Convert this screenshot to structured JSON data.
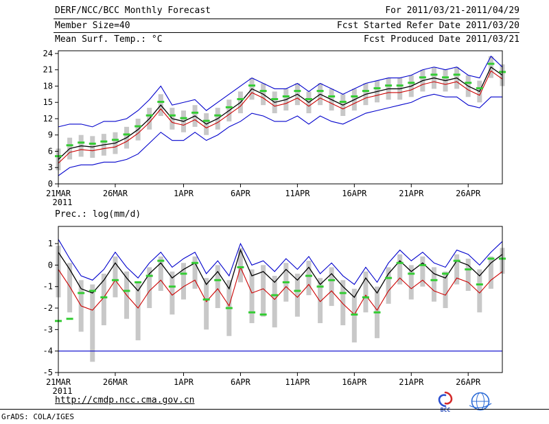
{
  "header": {
    "title": "DERF/NCC/BCC Monthly Forecast",
    "member_size": "Member Size=40",
    "panel1_label": "Mean Surf. Temp.: °C",
    "for_range": "For 2011/03/21-2011/04/29",
    "fcst_started": "Fcst Started Refer Date 2011/03/20",
    "fcst_produced": "Fcst Produced Date 2011/03/21"
  },
  "panels": {
    "prec_label": "Prec.: log(mm/d)"
  },
  "footer": {
    "url": "http://cmdp.ncc.cma.gov.cn",
    "grads_credit": "GrADS: COLA/IGES",
    "bcc_caption": "BCC"
  },
  "colors": {
    "ensemble_max_min": "#0000cc",
    "control_forecast": "#cc0000",
    "ensemble_mean": "#000000",
    "observation_dash": "#33cc33",
    "ensemble_spread_bar": "#c8c8c8"
  },
  "chart_data": [
    {
      "type": "line",
      "panel": "top",
      "title": "Mean Surf. Temp.: °C",
      "ylim": [
        0,
        24.5
      ],
      "yticks": [
        24,
        21,
        18,
        15,
        12,
        9,
        6,
        3,
        0
      ],
      "xtick_labels": [
        "21MAR",
        "26MAR",
        "1APR",
        "6APR",
        "11APR",
        "16APR",
        "21APR",
        "26APR"
      ],
      "xtick_positions": [
        0,
        5,
        11,
        16,
        21,
        26,
        31,
        36
      ],
      "year_label": "2011",
      "n_points": 40,
      "grid": false,
      "legend": false,
      "bars": {
        "name": "ensemble-spread",
        "color": "#c8c8c8",
        "top": [
          6.5,
          8.5,
          9.0,
          8.8,
          9.2,
          9.5,
          10.5,
          12.0,
          14.0,
          16.5,
          14.0,
          13.5,
          14.5,
          13.0,
          14.0,
          15.5,
          17.0,
          19.5,
          18.5,
          17.0,
          17.5,
          18.5,
          17.0,
          18.5,
          17.5,
          16.5,
          17.5,
          18.5,
          19.0,
          19.5,
          19.5,
          20.0,
          21.0,
          21.5,
          21.0,
          21.5,
          20.0,
          19.0,
          23.5,
          22.0
        ],
        "bottom": [
          2.5,
          4.5,
          5.0,
          4.8,
          5.2,
          5.5,
          6.5,
          8.0,
          10.0,
          12.5,
          10.0,
          9.5,
          10.5,
          9.0,
          10.0,
          11.5,
          13.0,
          15.5,
          14.5,
          13.0,
          13.5,
          14.5,
          13.0,
          14.5,
          13.5,
          12.5,
          13.5,
          14.5,
          15.0,
          15.5,
          15.5,
          16.0,
          17.0,
          17.5,
          17.0,
          17.5,
          16.0,
          15.0,
          19.5,
          18.0
        ]
      },
      "series": [
        {
          "name": "ensemble-max",
          "color": "#0000cc",
          "width": 1.1,
          "values": [
            10.5,
            11.0,
            11.0,
            10.5,
            11.5,
            11.5,
            12.0,
            13.5,
            15.5,
            18.0,
            14.5,
            15.0,
            15.5,
            13.5,
            15.0,
            16.5,
            18.0,
            19.5,
            18.5,
            17.5,
            17.5,
            18.5,
            17.0,
            18.5,
            17.5,
            16.5,
            17.5,
            18.5,
            19.0,
            19.5,
            19.5,
            20.0,
            21.0,
            21.5,
            21.0,
            21.5,
            20.0,
            19.5,
            23.5,
            21.5
          ]
        },
        {
          "name": "ensemble-min",
          "color": "#0000cc",
          "width": 1.1,
          "values": [
            1.5,
            3.0,
            3.5,
            3.5,
            4.0,
            4.0,
            4.5,
            5.5,
            7.5,
            9.5,
            8.0,
            8.0,
            9.5,
            8.0,
            9.0,
            10.5,
            11.5,
            13.0,
            12.5,
            11.5,
            11.5,
            12.5,
            11.0,
            12.5,
            11.5,
            11.0,
            12.0,
            13.0,
            13.5,
            14.0,
            14.5,
            15.0,
            16.0,
            16.5,
            16.0,
            16.0,
            14.5,
            14.0,
            16.0,
            16.0
          ]
        },
        {
          "name": "control-forecast",
          "color": "#cc0000",
          "width": 1.1,
          "values": [
            3.8,
            5.8,
            6.3,
            6.1,
            6.5,
            6.8,
            7.8,
            9.3,
            11.3,
            13.8,
            11.3,
            10.8,
            11.8,
            10.3,
            11.3,
            12.8,
            14.3,
            16.8,
            15.8,
            14.3,
            14.8,
            15.8,
            14.3,
            15.8,
            14.8,
            13.8,
            14.8,
            15.8,
            16.3,
            16.8,
            16.8,
            17.3,
            18.3,
            18.8,
            18.3,
            18.8,
            17.3,
            16.3,
            20.8,
            19.3
          ]
        },
        {
          "name": "ensemble-mean",
          "color": "#000000",
          "width": 1.3,
          "values": [
            4.5,
            6.5,
            7.0,
            6.8,
            7.2,
            7.5,
            8.5,
            10.0,
            12.0,
            14.5,
            12.0,
            11.5,
            12.5,
            11.0,
            12.0,
            13.5,
            15.0,
            17.5,
            16.5,
            15.0,
            15.5,
            16.5,
            15.0,
            16.5,
            15.5,
            14.5,
            15.5,
            16.5,
            17.0,
            17.5,
            17.5,
            18.0,
            19.0,
            19.5,
            19.0,
            19.5,
            18.0,
            17.0,
            21.5,
            20.0
          ]
        }
      ],
      "markers": {
        "name": "observation-dash",
        "color": "#33cc33",
        "values": [
          5.1,
          7.1,
          7.6,
          7.4,
          7.8,
          8.1,
          9.1,
          10.6,
          12.6,
          15.1,
          12.6,
          12.1,
          13.1,
          11.6,
          12.6,
          14.1,
          15.6,
          18.1,
          17.1,
          15.6,
          16.1,
          17.1,
          15.6,
          17.1,
          16.1,
          15.1,
          16.1,
          17.1,
          17.6,
          18.1,
          18.1,
          18.6,
          19.6,
          20.1,
          19.6,
          20.1,
          18.6,
          17.6,
          22.1,
          20.6
        ]
      }
    },
    {
      "type": "line",
      "panel": "bottom",
      "title": "Prec.: log(mm/d)",
      "ylim": [
        -5,
        1.8
      ],
      "yticks": [
        1,
        0,
        -1,
        -2,
        -3,
        -4,
        -5
      ],
      "xtick_labels": [
        "21MAR",
        "26MAR",
        "1APR",
        "6APR",
        "11APR",
        "16APR",
        "21APR",
        "26APR"
      ],
      "xtick_positions": [
        0,
        5,
        11,
        16,
        21,
        26,
        31,
        36
      ],
      "year_label": "2011",
      "n_points": 40,
      "grid": false,
      "legend": false,
      "bars": {
        "name": "ensemble-spread",
        "color": "#c8c8c8",
        "top": [
          0.9,
          0.1,
          -0.7,
          -0.9,
          -0.4,
          0.4,
          -0.3,
          -0.8,
          -0.1,
          0.4,
          -0.3,
          0.1,
          0.4,
          -0.6,
          0.0,
          -0.7,
          0.8,
          -0.2,
          0.0,
          -0.5,
          0.1,
          -0.4,
          0.2,
          -0.6,
          -0.1,
          -0.7,
          -1.1,
          -0.3,
          -1.0,
          -0.1,
          0.5,
          0.0,
          0.4,
          -0.1,
          -0.3,
          0.5,
          0.3,
          -0.2,
          0.4,
          0.8
        ],
        "bottom": [
          -1.5,
          -2.2,
          -3.1,
          -4.5,
          -2.8,
          -1.5,
          -2.5,
          -3.5,
          -2.0,
          -1.2,
          -2.3,
          -1.6,
          -1.1,
          -3.0,
          -2.0,
          -3.3,
          -0.8,
          -2.7,
          -2.4,
          -2.9,
          -1.7,
          -2.4,
          -1.4,
          -2.7,
          -1.9,
          -2.8,
          -3.6,
          -2.2,
          -3.4,
          -1.8,
          -0.9,
          -1.6,
          -1.0,
          -1.7,
          -2.0,
          -0.9,
          -1.2,
          -2.2,
          -1.1,
          -0.4
        ]
      },
      "series": [
        {
          "name": "ensemble-max",
          "color": "#0000cc",
          "width": 1.1,
          "values": [
            1.2,
            0.3,
            -0.5,
            -0.7,
            -0.2,
            0.6,
            -0.1,
            -0.6,
            0.1,
            0.6,
            -0.1,
            0.3,
            0.6,
            -0.4,
            0.2,
            -0.5,
            1.0,
            0.0,
            0.2,
            -0.3,
            0.3,
            -0.2,
            0.4,
            -0.4,
            0.1,
            -0.5,
            -0.9,
            -0.1,
            -0.8,
            0.1,
            0.7,
            0.2,
            0.6,
            0.1,
            -0.1,
            0.7,
            0.5,
            0.0,
            0.6,
            1.1
          ]
        },
        {
          "name": "ensemble-min",
          "color": "#0000cc",
          "width": 1.1,
          "values": [
            -4,
            -4,
            -4,
            -4,
            -4,
            -4,
            -4,
            -4,
            -4,
            -4,
            -4,
            -4,
            -4,
            -4,
            -4,
            -4,
            -4,
            -4,
            -4,
            -4,
            -4,
            -4,
            -4,
            -4,
            -4,
            -4,
            -4,
            -4,
            -4,
            -4,
            -4,
            -4,
            -4,
            -4,
            -4,
            -4,
            -4,
            -4,
            -4,
            -4
          ]
        },
        {
          "name": "control-forecast",
          "color": "#cc0000",
          "width": 1.1,
          "values": [
            -0.2,
            -1.0,
            -1.9,
            -2.1,
            -1.5,
            -0.7,
            -1.4,
            -2.0,
            -1.2,
            -0.7,
            -1.4,
            -1.0,
            -0.7,
            -1.7,
            -1.1,
            -1.9,
            -0.1,
            -1.3,
            -1.1,
            -1.6,
            -1.0,
            -1.5,
            -0.9,
            -1.7,
            -1.2,
            -1.8,
            -2.3,
            -1.4,
            -2.1,
            -1.2,
            -0.6,
            -1.1,
            -0.7,
            -1.2,
            -1.4,
            -0.6,
            -0.8,
            -1.3,
            -0.7,
            -0.3
          ]
        },
        {
          "name": "ensemble-mean",
          "color": "#000000",
          "width": 1.3,
          "values": [
            0.6,
            -0.2,
            -1.1,
            -1.3,
            -0.7,
            0.1,
            -0.6,
            -1.2,
            -0.4,
            0.1,
            -0.6,
            -0.2,
            0.1,
            -0.9,
            -0.3,
            -1.1,
            0.7,
            -0.5,
            -0.3,
            -0.8,
            -0.2,
            -0.7,
            -0.1,
            -0.9,
            -0.4,
            -1.0,
            -1.5,
            -0.6,
            -1.3,
            -0.4,
            0.2,
            -0.3,
            0.1,
            -0.4,
            -0.6,
            0.2,
            0.0,
            -0.5,
            0.1,
            0.5
          ]
        }
      ],
      "markers": {
        "name": "observation-dash",
        "color": "#33cc33",
        "values": [
          -2.6,
          -2.5,
          -1.3,
          -1.2,
          -1.5,
          -0.7,
          -1.2,
          -0.8,
          -0.5,
          0.2,
          -1.0,
          -0.4,
          0.1,
          -1.6,
          -0.7,
          -2.0,
          -0.1,
          -2.2,
          -2.3,
          -1.4,
          -0.8,
          -1.2,
          -0.5,
          -1.0,
          -0.7,
          -1.3,
          -2.3,
          -1.5,
          -2.2,
          -0.6,
          0.1,
          -0.4,
          0.0,
          -0.7,
          -0.4,
          0.2,
          -0.2,
          -0.9,
          0.3,
          0.3
        ]
      }
    }
  ]
}
